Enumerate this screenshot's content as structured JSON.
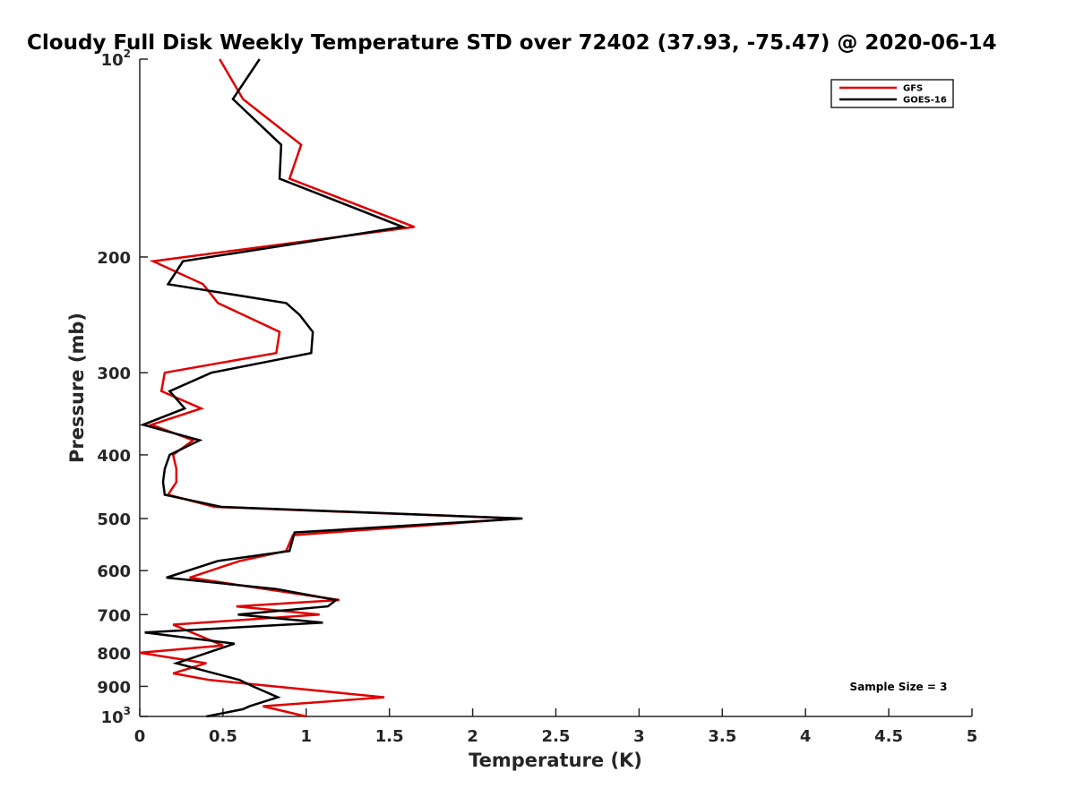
{
  "chart_data": {
    "type": "line",
    "title": "Cloudy Full Disk Weekly Temperature STD over 72402 (37.93, -75.47) @ 2020-06-14",
    "xlabel": "Temperature (K)",
    "ylabel": "Pressure (mb)",
    "xlim": [
      0,
      5
    ],
    "ylim": [
      100,
      1000
    ],
    "y_scale": "log",
    "y_reversed": true,
    "x_ticks": [
      "0",
      "0.5",
      "1",
      "1.5",
      "2",
      "2.5",
      "3",
      "3.5",
      "4",
      "4.5",
      "5"
    ],
    "y_ticks": [
      {
        "value": 100,
        "base": "10",
        "exp": "2"
      },
      {
        "value": 200,
        "label": "200"
      },
      {
        "value": 300,
        "label": "300"
      },
      {
        "value": 400,
        "label": "400"
      },
      {
        "value": 500,
        "label": "500"
      },
      {
        "value": 600,
        "label": "600"
      },
      {
        "value": 700,
        "label": "700"
      },
      {
        "value": 800,
        "label": "800"
      },
      {
        "value": 900,
        "label": "900"
      },
      {
        "value": 1000,
        "base": "10",
        "exp": "3"
      }
    ],
    "grid": false,
    "legend_position": "top-right",
    "annotation": "Sample Size = 3",
    "series": [
      {
        "name": "GFS",
        "color": "#e00000",
        "points": [
          [
            0.48,
            100
          ],
          [
            0.62,
            115
          ],
          [
            0.97,
            135
          ],
          [
            0.9,
            152
          ],
          [
            1.65,
            180
          ],
          [
            0.08,
            203
          ],
          [
            0.38,
            220
          ],
          [
            0.47,
            235
          ],
          [
            0.84,
            260
          ],
          [
            0.82,
            280
          ],
          [
            0.15,
            300
          ],
          [
            0.13,
            320
          ],
          [
            0.37,
            340
          ],
          [
            0.07,
            360
          ],
          [
            0.32,
            380
          ],
          [
            0.2,
            400
          ],
          [
            0.22,
            420
          ],
          [
            0.22,
            440
          ],
          [
            0.17,
            460
          ],
          [
            0.45,
            480
          ],
          [
            2.28,
            500
          ],
          [
            0.92,
            530
          ],
          [
            0.88,
            560
          ],
          [
            0.6,
            580
          ],
          [
            0.3,
            615
          ],
          [
            0.75,
            640
          ],
          [
            1.2,
            665
          ],
          [
            0.58,
            680
          ],
          [
            1.08,
            700
          ],
          [
            0.2,
            725
          ],
          [
            0.5,
            780
          ],
          [
            0.0,
            800
          ],
          [
            0.4,
            830
          ],
          [
            0.2,
            860
          ],
          [
            0.42,
            880
          ],
          [
            1.47,
            935
          ],
          [
            0.74,
            965
          ],
          [
            1.0,
            1000
          ]
        ]
      },
      {
        "name": "GOES-16",
        "color": "#000000",
        "points": [
          [
            0.72,
            100
          ],
          [
            0.56,
            115
          ],
          [
            0.85,
            135
          ],
          [
            0.84,
            152
          ],
          [
            1.58,
            180
          ],
          [
            0.26,
            203
          ],
          [
            0.17,
            220
          ],
          [
            0.88,
            235
          ],
          [
            0.96,
            245
          ],
          [
            1.04,
            260
          ],
          [
            1.03,
            280
          ],
          [
            0.43,
            300
          ],
          [
            0.18,
            320
          ],
          [
            0.27,
            340
          ],
          [
            0.02,
            360
          ],
          [
            0.36,
            380
          ],
          [
            0.18,
            400
          ],
          [
            0.15,
            420
          ],
          [
            0.14,
            440
          ],
          [
            0.15,
            460
          ],
          [
            0.49,
            480
          ],
          [
            2.3,
            500
          ],
          [
            0.93,
            525
          ],
          [
            0.9,
            560
          ],
          [
            0.47,
            580
          ],
          [
            0.16,
            615
          ],
          [
            0.82,
            640
          ],
          [
            1.18,
            665
          ],
          [
            1.13,
            680
          ],
          [
            0.59,
            700
          ],
          [
            1.1,
            720
          ],
          [
            0.03,
            745
          ],
          [
            0.57,
            775
          ],
          [
            0.22,
            830
          ],
          [
            0.6,
            880
          ],
          [
            0.68,
            900
          ],
          [
            0.83,
            935
          ],
          [
            0.66,
            965
          ],
          [
            0.62,
            975
          ],
          [
            0.4,
            1000
          ]
        ]
      }
    ]
  }
}
